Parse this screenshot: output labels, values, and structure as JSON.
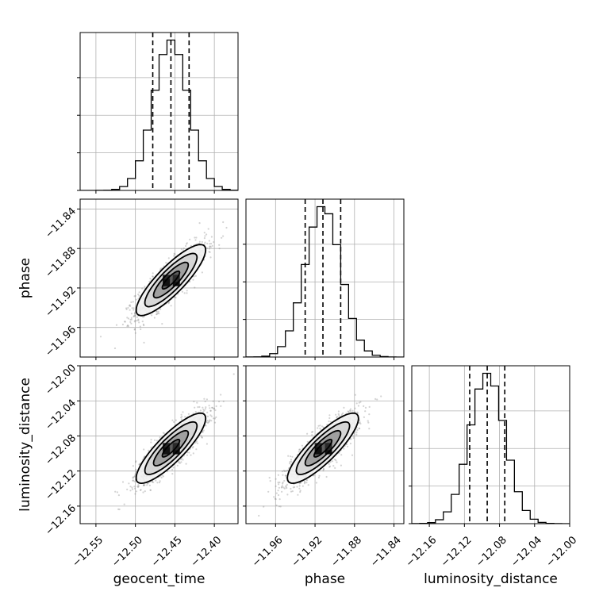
{
  "chart_data": {
    "type": "corner",
    "parameters": [
      {
        "name": "geocent_time",
        "range": [
          -12.57,
          -12.37
        ],
        "ticks": [
          -12.55,
          -12.5,
          -12.45,
          -12.4
        ],
        "tick_labels": [
          "−12.55",
          "−12.50",
          "−12.45",
          "−12.40"
        ],
        "mean": -12.455,
        "std": 0.022,
        "quantiles": [
          -12.478,
          -12.455,
          -12.432
        ]
      },
      {
        "name": "phase",
        "range": [
          -11.99,
          -11.83
        ],
        "ticks": [
          -11.96,
          -11.92,
          -11.88,
          -11.84
        ],
        "tick_labels": [
          "−11.96",
          "−11.92",
          "−11.88",
          "−11.84"
        ],
        "mean": -11.912,
        "std": 0.018,
        "quantiles": [
          -11.93,
          -11.912,
          -11.894
        ]
      },
      {
        "name": "luminosity_distance",
        "range": [
          -12.18,
          -12.0
        ],
        "ticks": [
          -12.16,
          -12.12,
          -12.08,
          -12.04,
          -12.0
        ],
        "tick_labels": [
          "−12.16",
          "−12.12",
          "−12.08",
          "−12.04",
          "−12.00"
        ],
        "mean": -12.094,
        "std": 0.02,
        "quantiles": [
          -12.114,
          -12.094,
          -12.074
        ]
      }
    ],
    "correlations": {
      "0-1": 0.85,
      "0-2": 0.85,
      "1-2": 0.85
    },
    "histogram_bins": 20,
    "contour_levels_sigma": [
      0.5,
      1.0,
      1.5,
      2.0
    ],
    "grid": true,
    "quantile_line_style": "dashed",
    "colors": {
      "density": "#000000",
      "points": "#808080",
      "grid": "#b0b0b0"
    }
  }
}
